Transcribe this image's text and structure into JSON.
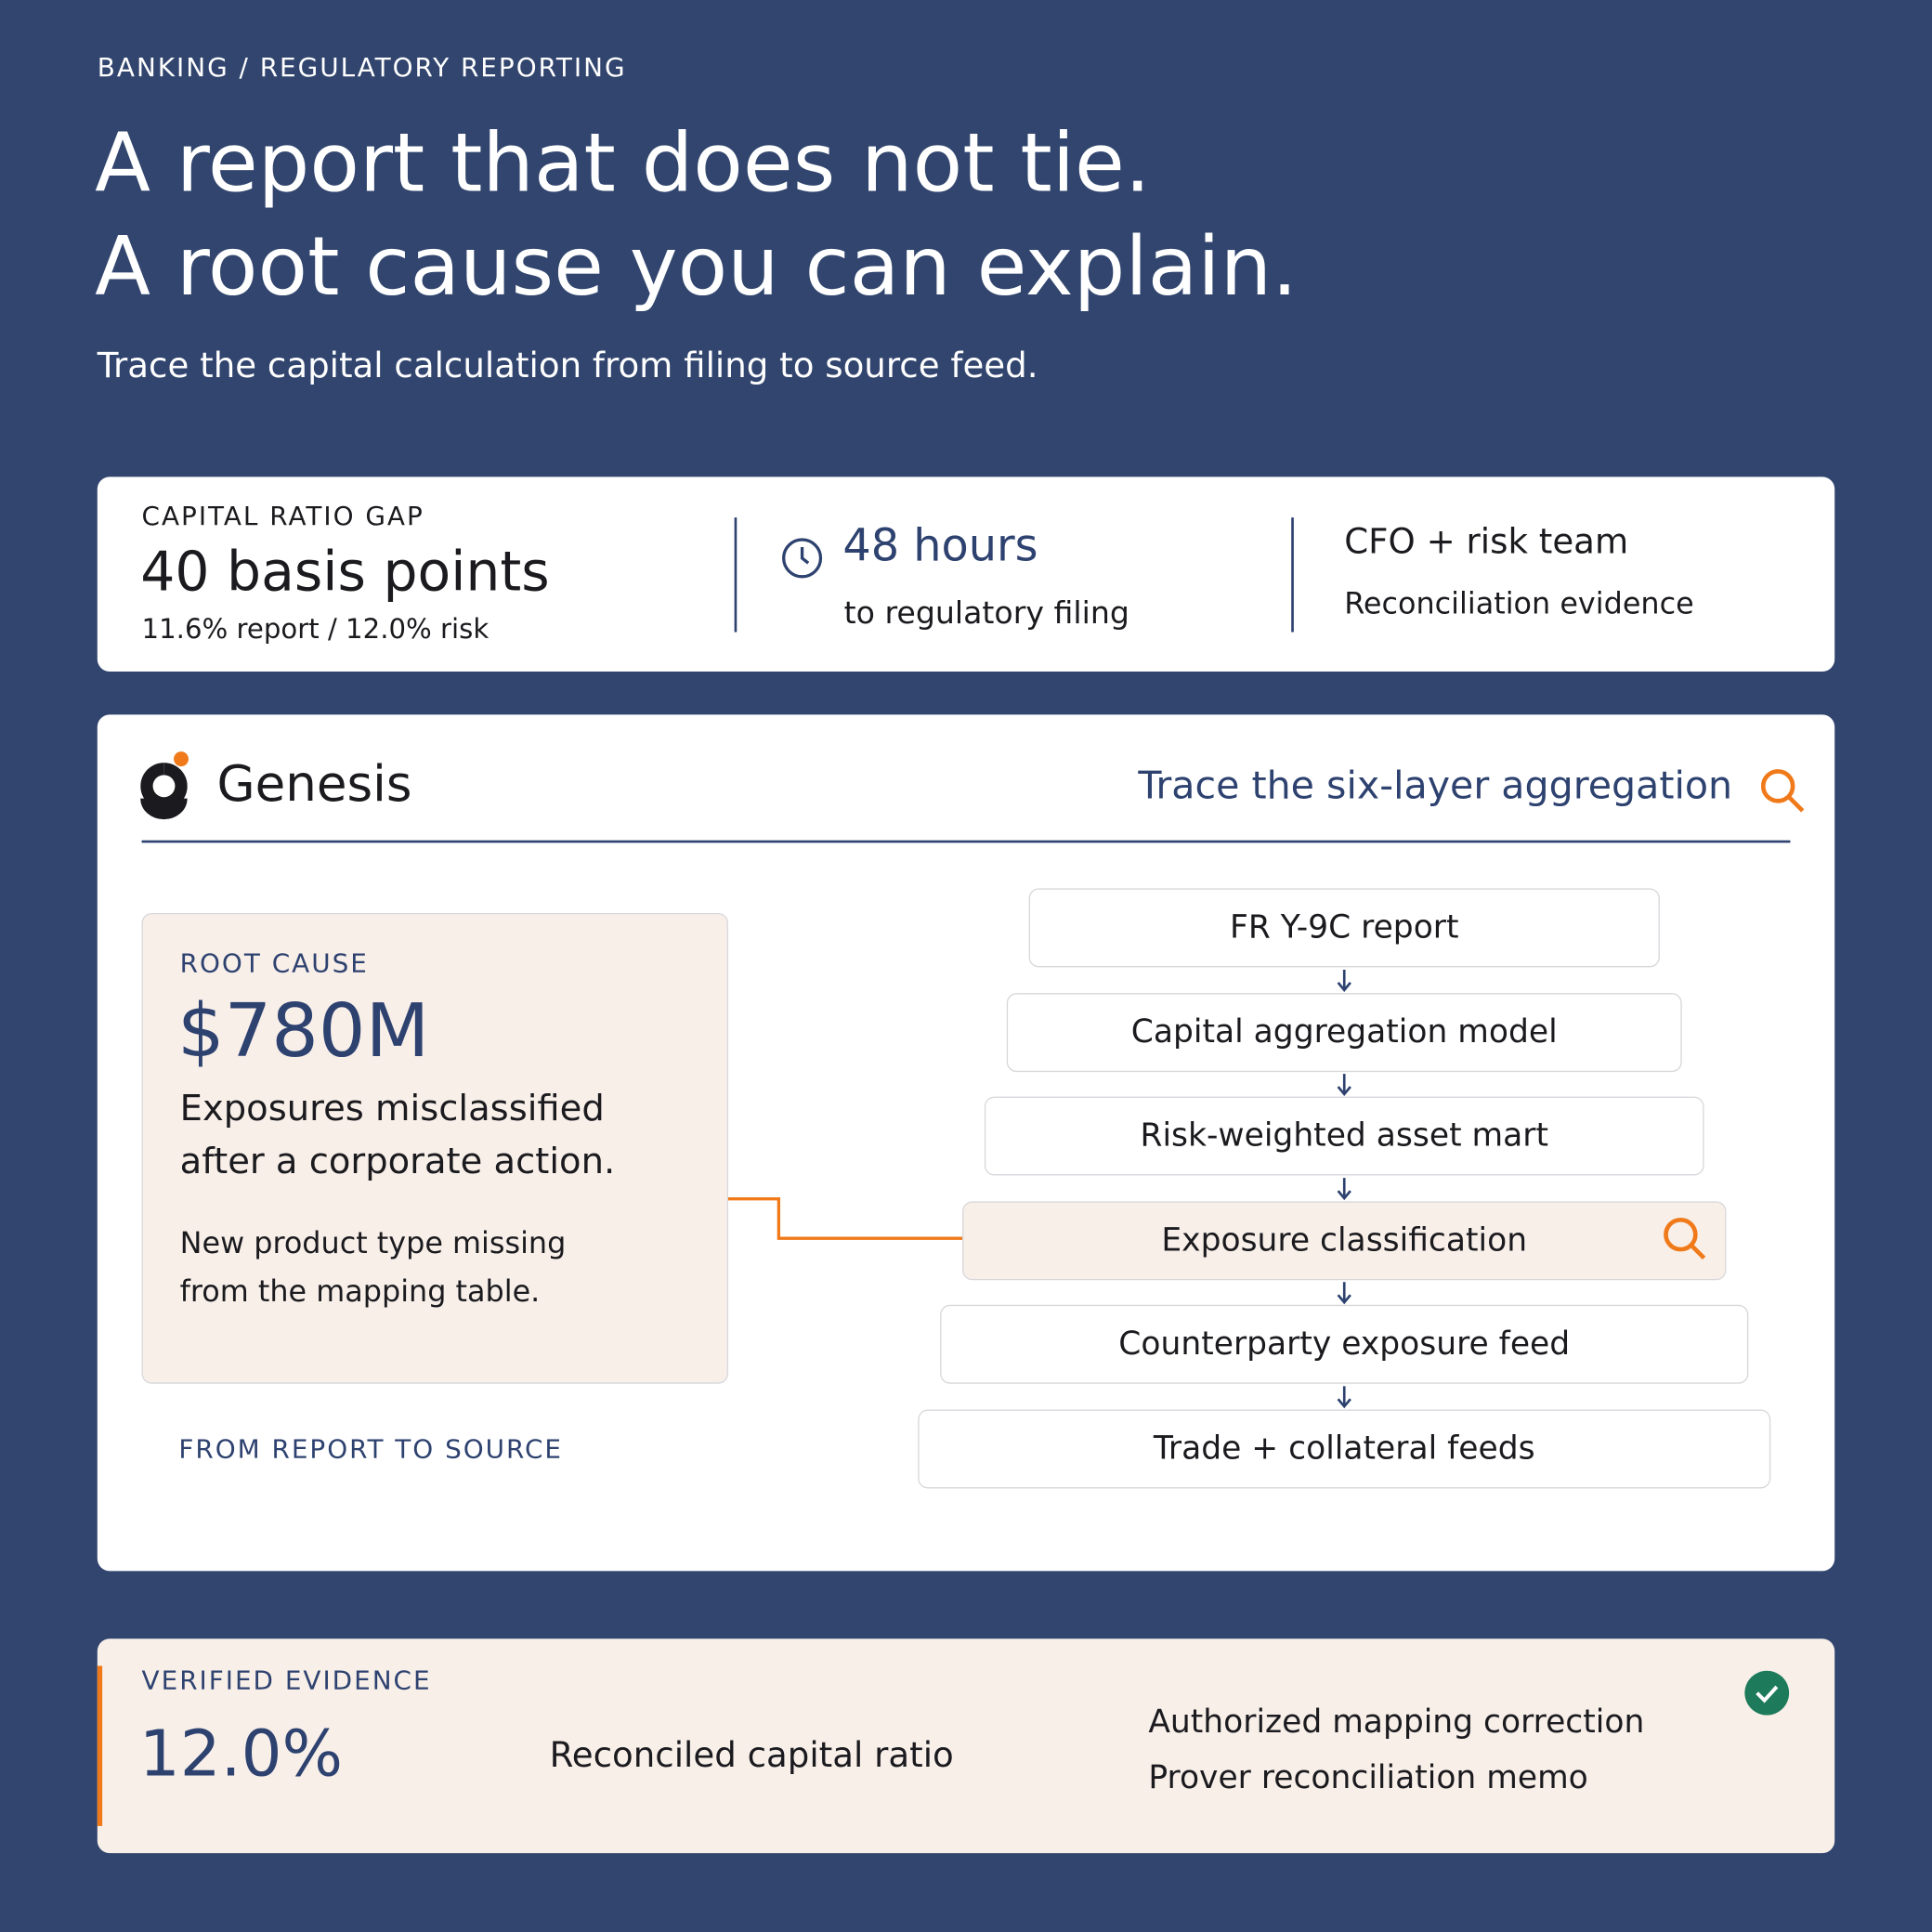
{
  "header": {
    "breadcrumb": "BANKING / REGULATORY REPORTING",
    "title_lines": [
      "A report that does not tie.",
      "A root cause you can explain."
    ],
    "subtitle": "Trace the capital calculation from filing to source feed."
  },
  "summary": [
    {
      "label": "CAPITAL RATIO GAP",
      "value": "40 basis points",
      "detail": "11.6% report / 12.0% risk"
    },
    {
      "value": "48 hours",
      "detail": "to regulatory filing"
    },
    {
      "value": "CFO + risk team",
      "detail": "Reconciliation evidence"
    }
  ],
  "panel": {
    "brand": "Genesis",
    "action": "Trace the six-layer aggregation",
    "root_cause": {
      "label": "ROOT CAUSE",
      "amount": "$780M",
      "headline": "Exposures misclassified after a corporate action.",
      "note": "New product type missing from the mapping table."
    },
    "footer_label": "FROM REPORT TO SOURCE",
    "highlight": 3,
    "layers": [
      "FR Y-9C report",
      "Capital aggregation model",
      "Risk-weighted asset mart",
      "Exposure classification",
      "Counterparty exposure feed",
      "Trade + collateral feeds"
    ]
  },
  "evidence": {
    "label": "VERIFIED EVIDENCE",
    "value": "12.0%",
    "description": "Reconciled capital ratio",
    "items": [
      "Authorized mapping correction",
      "Prover reconciliation memo"
    ]
  }
}
